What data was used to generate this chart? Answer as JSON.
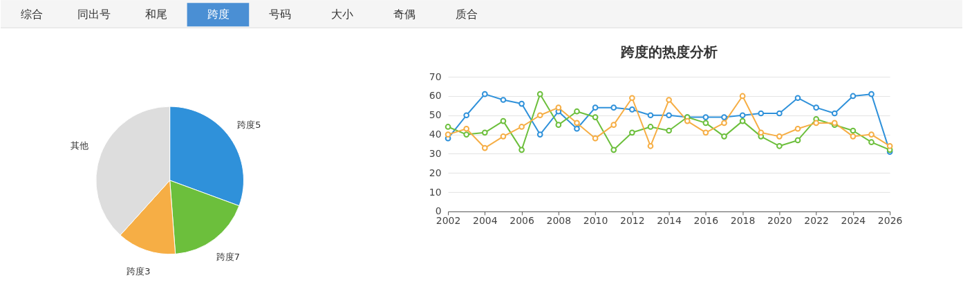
{
  "chart_data": [
    {
      "type": "other",
      "categories": [
        "综合",
        "同出号",
        "和尾",
        "跨度",
        "号码",
        "大小",
        "奇偶",
        "质合"
      ],
      "colors": [
        "#f5f5f5",
        "#f5f5f5",
        "#f5f5f5",
        "#4a8fd4",
        "#f5f5f5",
        "#f5f5f5",
        "#f5f5f5",
        "#f5f5f5"
      ]
    },
    {
      "type": "pie",
      "categories": [
        "跨度5",
        "跨度7",
        "跨度3",
        "其他"
      ],
      "values": [
        30.6,
        18.2,
        12.9,
        38.3
      ],
      "colors": [
        "#2f91da",
        "#6cbf3c",
        "#f6ae45",
        "#dddddd"
      ]
    },
    {
      "type": "line",
      "title": "跨度的热度分析",
      "x": [
        2002,
        2003,
        2004,
        2005,
        2006,
        2007,
        2008,
        2009,
        2010,
        2011,
        2012,
        2013,
        2014,
        2015,
        2016,
        2017,
        2018,
        2019,
        2020,
        2021,
        2022,
        2023,
        2024,
        2025,
        2026
      ],
      "xlim": [
        2002,
        2026
      ],
      "xticks": [
        2002,
        2004,
        2006,
        2008,
        2010,
        2012,
        2014,
        2016,
        2018,
        2020,
        2022,
        2024,
        2026
      ],
      "ylim": [
        0,
        70
      ],
      "yticks": [
        0,
        10,
        20,
        30,
        40,
        50,
        60,
        70
      ],
      "grid": "y",
      "marker": "circle",
      "series": [
        {
          "color": "#2f91da",
          "values": [
            38,
            50,
            61,
            58,
            56,
            40,
            52,
            43,
            54,
            54,
            53,
            50,
            50,
            49,
            49,
            49,
            50,
            51,
            51,
            59,
            54,
            51,
            60,
            61,
            31
          ]
        },
        {
          "color": "#6cbf3c",
          "values": [
            44,
            40,
            41,
            47,
            32,
            61,
            45,
            52,
            49,
            32,
            41,
            44,
            42,
            49,
            46,
            39,
            47,
            39,
            34,
            37,
            48,
            45,
            42,
            36,
            32
          ]
        },
        {
          "color": "#f6ae45",
          "values": [
            40,
            43,
            33,
            39,
            44,
            50,
            54,
            46,
            38,
            45,
            59,
            34,
            58,
            47,
            41,
            46,
            60,
            41,
            39,
            43,
            46,
            46,
            39,
            40,
            34
          ]
        }
      ]
    }
  ]
}
